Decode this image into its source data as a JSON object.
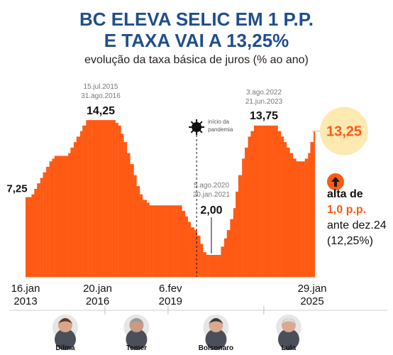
{
  "header": {
    "title_line1": "BC ELEVA SELIC EM 1 P.P.",
    "title_line2": "E TAXA VAI A 13,25%",
    "subtitle": "evolução da taxa básica de juros (% ao ano)"
  },
  "colors": {
    "accent": "#ff5a14",
    "title": "#1f4e8c",
    "current_bg": "#fde9b2",
    "current_text": "#ff5a14"
  },
  "chart_data": {
    "type": "area",
    "title": "BC ELEVA SELIC EM 1 P.P. E TAXA VAI A 13,25%",
    "ylabel": "evolução da taxa básica de juros (% ao ano)",
    "ylim": [
      0,
      15
    ],
    "x": [
      "2013-01-16",
      "2013-03-06",
      "2013-04-17",
      "2013-05-29",
      "2013-07-10",
      "2013-08-28",
      "2013-10-09",
      "2013-11-27",
      "2014-01-15",
      "2014-02-26",
      "2014-04-02",
      "2014-05-28",
      "2014-07-16",
      "2014-09-03",
      "2014-10-29",
      "2014-12-03",
      "2015-01-21",
      "2015-03-04",
      "2015-04-29",
      "2015-06-03",
      "2015-07-29",
      "2015-09-02",
      "2015-10-21",
      "2015-11-25",
      "2016-01-20",
      "2016-03-02",
      "2016-04-27",
      "2016-06-08",
      "2016-07-20",
      "2016-08-31",
      "2016-10-19",
      "2016-11-30",
      "2017-01-11",
      "2017-02-22",
      "2017-04-12",
      "2017-05-31",
      "2017-07-26",
      "2017-09-06",
      "2017-10-25",
      "2017-12-06",
      "2018-02-07",
      "2018-03-21",
      "2018-05-16",
      "2018-06-20",
      "2018-08-01",
      "2018-09-19",
      "2018-10-31",
      "2018-12-12",
      "2019-02-06",
      "2019-03-20",
      "2019-05-08",
      "2019-06-19",
      "2019-07-31",
      "2019-09-18",
      "2019-10-30",
      "2019-12-11",
      "2020-02-05",
      "2020-03-18",
      "2020-05-06",
      "2020-06-17",
      "2020-08-05",
      "2020-09-16",
      "2020-10-28",
      "2020-12-09",
      "2021-01-20",
      "2021-03-17",
      "2021-05-05",
      "2021-06-16",
      "2021-08-04",
      "2021-09-22",
      "2021-10-27",
      "2021-12-08",
      "2022-02-02",
      "2022-03-16",
      "2022-05-04",
      "2022-06-15",
      "2022-08-03",
      "2022-09-21",
      "2022-10-26",
      "2022-12-07",
      "2023-02-01",
      "2023-03-22",
      "2023-05-03",
      "2023-06-21",
      "2023-08-02",
      "2023-09-20",
      "2023-11-01",
      "2023-12-13",
      "2024-01-31",
      "2024-03-20",
      "2024-05-08",
      "2024-06-19",
      "2024-07-31",
      "2024-09-18",
      "2024-11-06",
      "2024-12-11",
      "2025-01-29"
    ],
    "values": [
      7.25,
      7.25,
      7.5,
      8.0,
      8.5,
      9.0,
      9.5,
      10.0,
      10.5,
      10.75,
      11.0,
      11.0,
      11.0,
      11.0,
      11.25,
      11.75,
      12.25,
      12.75,
      13.25,
      13.75,
      14.25,
      14.25,
      14.25,
      14.25,
      14.25,
      14.25,
      14.25,
      14.25,
      14.25,
      14.25,
      14.0,
      13.75,
      13.0,
      12.25,
      11.25,
      10.25,
      9.25,
      8.25,
      7.5,
      7.0,
      6.75,
      6.5,
      6.5,
      6.5,
      6.5,
      6.5,
      6.5,
      6.5,
      6.5,
      6.5,
      6.5,
      6.5,
      6.0,
      5.5,
      5.0,
      4.5,
      4.25,
      3.75,
      3.0,
      2.25,
      2.0,
      2.0,
      2.0,
      2.0,
      2.0,
      2.75,
      3.5,
      4.25,
      5.25,
      6.25,
      7.75,
      9.25,
      10.75,
      11.75,
      12.75,
      13.25,
      13.75,
      13.75,
      13.75,
      13.75,
      13.75,
      13.75,
      13.75,
      13.75,
      13.25,
      12.75,
      12.25,
      11.75,
      11.25,
      10.75,
      10.5,
      10.5,
      10.5,
      10.75,
      11.25,
      12.25,
      13.25
    ],
    "x_ticks": [
      {
        "date": "2013-01-16",
        "line1": "16.jan",
        "line2": "2013"
      },
      {
        "date": "2016-01-20",
        "line1": "20.jan",
        "line2": "2016"
      },
      {
        "date": "2019-02-06",
        "line1": "6.fev",
        "line2": "2019"
      },
      {
        "date": "2025-01-29",
        "line1": "29.jan",
        "line2": "2025"
      }
    ],
    "annotations": [
      {
        "date": "2013-01-16",
        "value": "7,25"
      },
      {
        "date": "2015-11-25",
        "value": "14,25",
        "dates": [
          "15.jul.2015",
          "31.ago.2016"
        ]
      },
      {
        "date": "2020-10-28",
        "value": "2,00",
        "dates": [
          "5.ago.2020",
          "20.jan.2021"
        ]
      },
      {
        "date": "2023-02-01",
        "value": "13,75",
        "dates": [
          "3.ago.2022",
          "21.jun.2023"
        ]
      },
      {
        "date": "2025-01-29",
        "value": "13,25",
        "current": true
      }
    ],
    "event": {
      "date": "2020-03-11",
      "label_line1": "início da",
      "label_line2": "pandemia",
      "icon": "virus-icon"
    }
  },
  "side_note": {
    "icon": "arrow-up-icon",
    "line1": "alta de",
    "line2": "1,0 p.p.",
    "line3": "ante dez.24",
    "line4": "(12,25%)"
  },
  "presidents": [
    {
      "name": "Dilma",
      "from": "2013-01-16",
      "to": "2016-05-12",
      "skin": "#d9a688",
      "hair": "#5b3b2a"
    },
    {
      "name": "Temer",
      "from": "2016-05-12",
      "to": "2019-01-01",
      "skin": "#c89b83",
      "hair": "#9a9a9a"
    },
    {
      "name": "Bolsonaro",
      "from": "2019-01-01",
      "to": "2023-01-01",
      "skin": "#d9a990",
      "hair": "#3a3a3a"
    },
    {
      "name": "Lula",
      "from": "2023-01-01",
      "to": "2025-01-29",
      "skin": "#d9a990",
      "hair": "#dcdcdc"
    }
  ]
}
